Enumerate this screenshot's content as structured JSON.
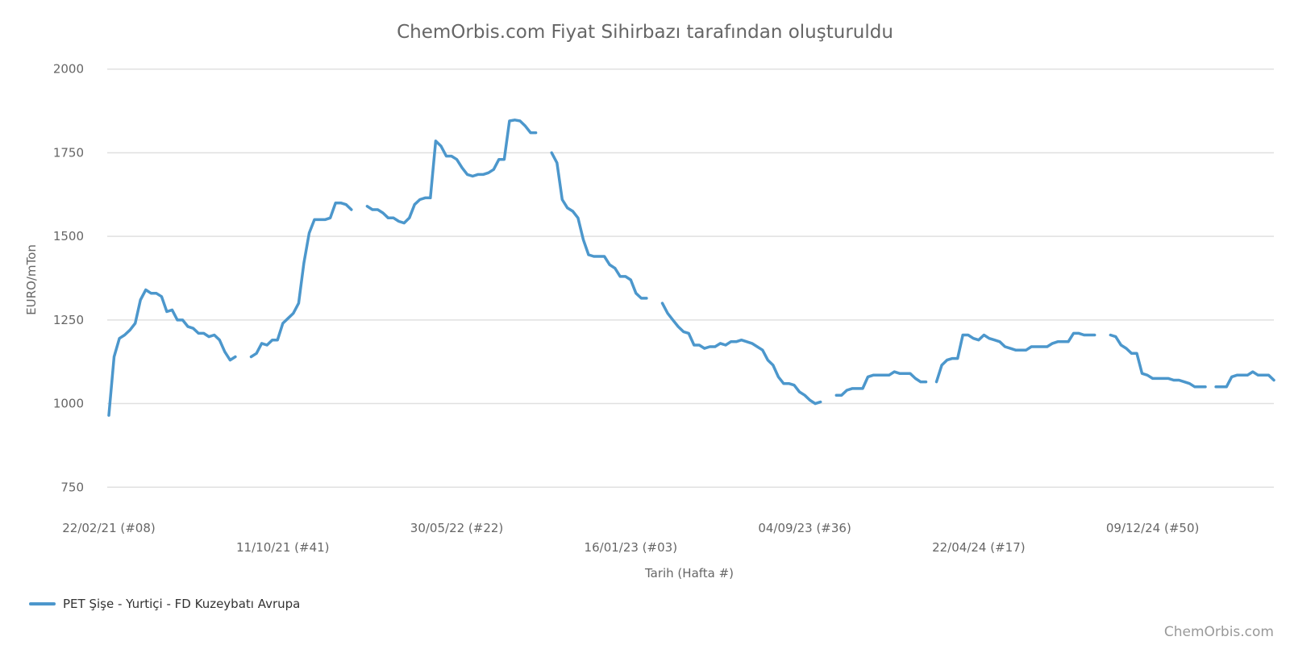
{
  "chart_data": {
    "type": "line",
    "title": "ChemOrbis.com Fiyat Sihirbazı tarafından oluşturuldu",
    "xlabel": "Tarih (Hafta #)",
    "ylabel": "EURO/mTon",
    "ylim": [
      700,
      2050
    ],
    "y_ticks": [
      750,
      1000,
      1250,
      1500,
      1750,
      2000
    ],
    "x_ticks": [
      {
        "label": "22/02/21 (#08)",
        "date": "2021-02-22"
      },
      {
        "label": "11/10/21 (#41)",
        "date": "2021-10-11"
      },
      {
        "label": "30/05/22 (#22)",
        "date": "2022-05-30"
      },
      {
        "label": "16/01/23 (#03)",
        "date": "2023-01-16"
      },
      {
        "label": "04/09/23 (#36)",
        "date": "2023-09-04"
      },
      {
        "label": "22/04/24 (#17)",
        "date": "2024-04-22"
      },
      {
        "label": "09/12/24 (#50)",
        "date": "2024-12-09"
      }
    ],
    "x_range": [
      "2021-02-22",
      "2025-05-19"
    ],
    "grid": true,
    "legend_position": "bottom-left",
    "series": [
      {
        "name": "PET Şişe - Yurtiçi  - FD Kuzeybatı Avrupa",
        "color": "#4c97cc",
        "segments": [
          [
            [
              "2021-02-22",
              965
            ],
            [
              "2021-03-01",
              1140
            ],
            [
              "2021-03-08",
              1195
            ],
            [
              "2021-03-15",
              1205
            ],
            [
              "2021-03-22",
              1220
            ],
            [
              "2021-03-29",
              1240
            ],
            [
              "2021-04-05",
              1310
            ],
            [
              "2021-04-12",
              1340
            ],
            [
              "2021-04-19",
              1330
            ],
            [
              "2021-04-26",
              1330
            ],
            [
              "2021-05-03",
              1320
            ],
            [
              "2021-05-10",
              1275
            ],
            [
              "2021-05-17",
              1280
            ],
            [
              "2021-05-24",
              1250
            ],
            [
              "2021-05-31",
              1250
            ],
            [
              "2021-06-07",
              1230
            ],
            [
              "2021-06-14",
              1225
            ],
            [
              "2021-06-21",
              1210
            ],
            [
              "2021-06-28",
              1210
            ],
            [
              "2021-07-05",
              1200
            ],
            [
              "2021-07-12",
              1205
            ],
            [
              "2021-07-19",
              1190
            ],
            [
              "2021-07-26",
              1155
            ],
            [
              "2021-08-02",
              1130
            ],
            [
              "2021-08-09",
              1140
            ]
          ],
          [
            [
              "2021-08-30",
              1140
            ],
            [
              "2021-09-06",
              1150
            ],
            [
              "2021-09-13",
              1180
            ],
            [
              "2021-09-20",
              1175
            ],
            [
              "2021-09-27",
              1190
            ],
            [
              "2021-10-04",
              1190
            ],
            [
              "2021-10-11",
              1240
            ],
            [
              "2021-10-18",
              1255
            ],
            [
              "2021-10-25",
              1270
            ],
            [
              "2021-11-01",
              1300
            ],
            [
              "2021-11-08",
              1420
            ],
            [
              "2021-11-15",
              1510
            ],
            [
              "2021-11-22",
              1550
            ],
            [
              "2021-11-29",
              1550
            ],
            [
              "2021-12-06",
              1550
            ],
            [
              "2021-12-13",
              1555
            ],
            [
              "2021-12-20",
              1600
            ],
            [
              "2021-12-27",
              1600
            ],
            [
              "2022-01-03",
              1595
            ],
            [
              "2022-01-10",
              1580
            ]
          ],
          [
            [
              "2022-01-31",
              1590
            ],
            [
              "2022-02-07",
              1580
            ],
            [
              "2022-02-14",
              1580
            ],
            [
              "2022-02-21",
              1570
            ],
            [
              "2022-02-28",
              1555
            ],
            [
              "2022-03-07",
              1555
            ],
            [
              "2022-03-14",
              1545
            ],
            [
              "2022-03-21",
              1540
            ],
            [
              "2022-03-28",
              1555
            ],
            [
              "2022-04-04",
              1595
            ],
            [
              "2022-04-11",
              1610
            ],
            [
              "2022-04-18",
              1615
            ],
            [
              "2022-04-25",
              1615
            ],
            [
              "2022-05-02",
              1785
            ],
            [
              "2022-05-09",
              1770
            ],
            [
              "2022-05-16",
              1740
            ],
            [
              "2022-05-23",
              1740
            ],
            [
              "2022-05-30",
              1730
            ],
            [
              "2022-06-06",
              1705
            ],
            [
              "2022-06-13",
              1685
            ],
            [
              "2022-06-20",
              1680
            ],
            [
              "2022-06-27",
              1685
            ],
            [
              "2022-07-04",
              1685
            ],
            [
              "2022-07-11",
              1690
            ],
            [
              "2022-07-18",
              1700
            ],
            [
              "2022-07-25",
              1730
            ],
            [
              "2022-08-01",
              1730
            ],
            [
              "2022-08-08",
              1845
            ],
            [
              "2022-08-15",
              1848
            ],
            [
              "2022-08-22",
              1845
            ],
            [
              "2022-08-29",
              1830
            ],
            [
              "2022-09-05",
              1810
            ],
            [
              "2022-09-12",
              1810
            ]
          ],
          [
            [
              "2022-10-03",
              1750
            ],
            [
              "2022-10-10",
              1720
            ],
            [
              "2022-10-17",
              1610
            ],
            [
              "2022-10-24",
              1585
            ],
            [
              "2022-10-31",
              1575
            ],
            [
              "2022-11-07",
              1555
            ],
            [
              "2022-11-14",
              1490
            ],
            [
              "2022-11-21",
              1445
            ],
            [
              "2022-11-28",
              1440
            ],
            [
              "2022-12-05",
              1440
            ],
            [
              "2022-12-12",
              1440
            ],
            [
              "2022-12-19",
              1415
            ],
            [
              "2022-12-26",
              1405
            ],
            [
              "2023-01-02",
              1380
            ],
            [
              "2023-01-09",
              1380
            ],
            [
              "2023-01-16",
              1370
            ],
            [
              "2023-01-23",
              1330
            ],
            [
              "2023-01-30",
              1315
            ],
            [
              "2023-02-06",
              1315
            ]
          ],
          [
            [
              "2023-02-27",
              1300
            ],
            [
              "2023-03-06",
              1270
            ],
            [
              "2023-03-13",
              1250
            ],
            [
              "2023-03-20",
              1230
            ],
            [
              "2023-03-27",
              1215
            ],
            [
              "2023-04-03",
              1210
            ],
            [
              "2023-04-10",
              1175
            ],
            [
              "2023-04-17",
              1175
            ],
            [
              "2023-04-24",
              1165
            ],
            [
              "2023-05-01",
              1170
            ],
            [
              "2023-05-08",
              1170
            ],
            [
              "2023-05-15",
              1180
            ],
            [
              "2023-05-22",
              1175
            ],
            [
              "2023-05-29",
              1185
            ],
            [
              "2023-06-05",
              1185
            ],
            [
              "2023-06-12",
              1190
            ],
            [
              "2023-06-19",
              1185
            ],
            [
              "2023-06-26",
              1180
            ],
            [
              "2023-07-03",
              1170
            ],
            [
              "2023-07-10",
              1160
            ],
            [
              "2023-07-17",
              1130
            ],
            [
              "2023-07-24",
              1115
            ],
            [
              "2023-07-31",
              1080
            ],
            [
              "2023-08-07",
              1060
            ],
            [
              "2023-08-14",
              1060
            ],
            [
              "2023-08-21",
              1055
            ],
            [
              "2023-08-28",
              1035
            ],
            [
              "2023-09-04",
              1025
            ],
            [
              "2023-09-11",
              1010
            ],
            [
              "2023-09-18",
              1000
            ],
            [
              "2023-09-25",
              1005
            ]
          ],
          [
            [
              "2023-10-16",
              1025
            ],
            [
              "2023-10-23",
              1025
            ],
            [
              "2023-10-30",
              1040
            ],
            [
              "2023-11-06",
              1045
            ],
            [
              "2023-11-13",
              1045
            ],
            [
              "2023-11-20",
              1045
            ],
            [
              "2023-11-27",
              1080
            ],
            [
              "2023-12-04",
              1085
            ],
            [
              "2023-12-11",
              1085
            ],
            [
              "2023-12-18",
              1085
            ],
            [
              "2023-12-25",
              1085
            ],
            [
              "2024-01-01",
              1095
            ],
            [
              "2024-01-08",
              1090
            ],
            [
              "2024-01-15",
              1090
            ],
            [
              "2024-01-22",
              1090
            ],
            [
              "2024-01-29",
              1075
            ],
            [
              "2024-02-05",
              1065
            ],
            [
              "2024-02-12",
              1065
            ]
          ],
          [
            [
              "2024-02-26",
              1065
            ],
            [
              "2024-03-04",
              1115
            ],
            [
              "2024-03-11",
              1130
            ],
            [
              "2024-03-18",
              1135
            ],
            [
              "2024-03-25",
              1135
            ],
            [
              "2024-04-01",
              1205
            ],
            [
              "2024-04-08",
              1205
            ],
            [
              "2024-04-15",
              1195
            ],
            [
              "2024-04-22",
              1190
            ],
            [
              "2024-04-29",
              1205
            ],
            [
              "2024-05-06",
              1195
            ],
            [
              "2024-05-13",
              1190
            ],
            [
              "2024-05-20",
              1185
            ],
            [
              "2024-05-27",
              1170
            ],
            [
              "2024-06-03",
              1165
            ],
            [
              "2024-06-10",
              1160
            ],
            [
              "2024-06-17",
              1160
            ],
            [
              "2024-06-24",
              1160
            ],
            [
              "2024-07-01",
              1170
            ],
            [
              "2024-07-08",
              1170
            ],
            [
              "2024-07-15",
              1170
            ],
            [
              "2024-07-22",
              1170
            ],
            [
              "2024-07-29",
              1180
            ],
            [
              "2024-08-05",
              1185
            ],
            [
              "2024-08-12",
              1185
            ],
            [
              "2024-08-19",
              1185
            ],
            [
              "2024-08-26",
              1210
            ],
            [
              "2024-09-02",
              1210
            ],
            [
              "2024-09-09",
              1205
            ],
            [
              "2024-09-16",
              1205
            ],
            [
              "2024-09-23",
              1205
            ]
          ],
          [
            [
              "2024-10-14",
              1205
            ],
            [
              "2024-10-21",
              1200
            ],
            [
              "2024-10-28",
              1175
            ],
            [
              "2024-11-04",
              1165
            ],
            [
              "2024-11-11",
              1150
            ],
            [
              "2024-11-18",
              1150
            ],
            [
              "2024-11-25",
              1090
            ],
            [
              "2024-12-02",
              1085
            ],
            [
              "2024-12-09",
              1075
            ],
            [
              "2024-12-16",
              1075
            ],
            [
              "2024-12-23",
              1075
            ],
            [
              "2024-12-30",
              1075
            ],
            [
              "2025-01-06",
              1070
            ],
            [
              "2025-01-13",
              1070
            ],
            [
              "2025-01-20",
              1065
            ],
            [
              "2025-01-27",
              1060
            ],
            [
              "2025-02-03",
              1050
            ],
            [
              "2025-02-10",
              1050
            ],
            [
              "2025-02-17",
              1050
            ]
          ],
          [
            [
              "2025-03-03",
              1050
            ],
            [
              "2025-03-10",
              1050
            ],
            [
              "2025-03-17",
              1050
            ],
            [
              "2025-03-24",
              1080
            ],
            [
              "2025-03-31",
              1085
            ],
            [
              "2025-04-07",
              1085
            ],
            [
              "2025-04-14",
              1085
            ],
            [
              "2025-04-21",
              1095
            ],
            [
              "2025-04-28",
              1085
            ],
            [
              "2025-05-05",
              1085
            ],
            [
              "2025-05-12",
              1085
            ],
            [
              "2025-05-19",
              1070
            ]
          ]
        ]
      }
    ]
  },
  "credit": "ChemOrbis.com"
}
